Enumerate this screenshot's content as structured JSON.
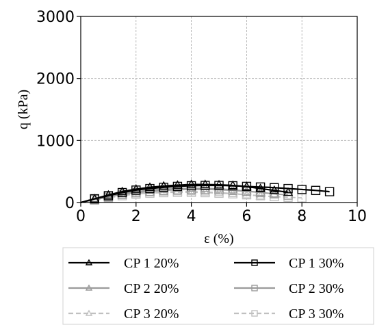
{
  "chart_data": {
    "type": "line",
    "xlabel": "ε (%)",
    "ylabel": "q (kPa)",
    "xlim": [
      0,
      10
    ],
    "ylim": [
      0,
      3000
    ],
    "xticks": [
      "0",
      "2",
      "4",
      "6",
      "8",
      "10"
    ],
    "yticks": [
      "0",
      "1000",
      "2000",
      "3000"
    ],
    "grid": true,
    "legend_position": "bottom",
    "series": [
      {
        "name": "CP 1 20%",
        "marker": "triangle",
        "color": "#000000",
        "dash": "solid",
        "x": [
          0,
          0.5,
          1.0,
          1.5,
          2.0,
          2.5,
          3.0,
          3.5,
          4.0,
          4.5,
          5.0,
          5.5,
          6.0,
          6.5,
          7.0,
          7.5
        ],
        "y": [
          0,
          60,
          120,
          175,
          215,
          245,
          265,
          280,
          290,
          290,
          285,
          275,
          255,
          225,
          195,
          165
        ]
      },
      {
        "name": "CP 1 30%",
        "marker": "square",
        "color": "#000000",
        "dash": "solid",
        "x": [
          0,
          0.5,
          1.0,
          1.5,
          2.0,
          2.5,
          3.0,
          3.5,
          4.0,
          4.5,
          5.0,
          5.5,
          6.0,
          6.5,
          7.0,
          7.5,
          8.0,
          8.5,
          9.0
        ],
        "y": [
          0,
          60,
          110,
          160,
          200,
          225,
          245,
          260,
          270,
          275,
          275,
          270,
          260,
          250,
          240,
          225,
          210,
          195,
          175
        ]
      },
      {
        "name": "CP 2 20%",
        "marker": "triangle",
        "color": "#9a9a9a",
        "dash": "solid",
        "x": [
          0,
          0.5,
          1.0,
          1.5,
          2.0,
          2.5,
          3.0,
          3.5,
          4.0,
          4.5,
          5.0,
          5.5,
          6.0,
          6.5,
          7.0
        ],
        "y": [
          0,
          50,
          100,
          145,
          175,
          200,
          215,
          225,
          230,
          228,
          220,
          205,
          185,
          165,
          140
        ]
      },
      {
        "name": "CP 2 30%",
        "marker": "square",
        "color": "#9a9a9a",
        "dash": "solid",
        "x": [
          0,
          0.5,
          1.0,
          1.5,
          2.0,
          2.5,
          3.0,
          3.5,
          4.0,
          4.5,
          5.0,
          5.5,
          6.0,
          6.5,
          7.0,
          7.5
        ],
        "y": [
          0,
          45,
          90,
          130,
          160,
          180,
          195,
          205,
          210,
          210,
          205,
          195,
          180,
          160,
          140,
          120
        ]
      },
      {
        "name": "CP 3 20%",
        "marker": "triangle",
        "color": "#c0c0c0",
        "dash": "dashed",
        "x": [
          0,
          0.5,
          1.0,
          1.5,
          2.0,
          2.5,
          3.0,
          3.5,
          4.0,
          4.5,
          5.0,
          5.5,
          6.0,
          6.5
        ],
        "y": [
          0,
          40,
          80,
          115,
          140,
          160,
          170,
          175,
          175,
          170,
          160,
          145,
          125,
          105
        ]
      },
      {
        "name": "CP 3 30%",
        "marker": "square",
        "color": "#c0c0c0",
        "dash": "dashed",
        "x": [
          0,
          0.5,
          1.0,
          1.5,
          2.0,
          2.5,
          3.0,
          3.5,
          4.0,
          4.5,
          5.0,
          5.5,
          6.0,
          6.5,
          7.0,
          7.5,
          8.0
        ],
        "y": [
          0,
          40,
          75,
          110,
          135,
          150,
          160,
          165,
          165,
          160,
          150,
          140,
          125,
          110,
          95,
          85,
          75
        ]
      }
    ]
  }
}
